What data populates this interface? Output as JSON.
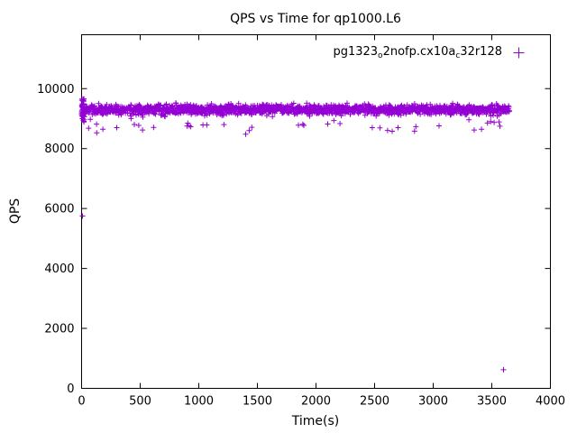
{
  "chart": {
    "title": "QPS vs Time for qp1000.L6",
    "xlabel": "Time(s)",
    "ylabel": "QPS",
    "legend": {
      "label": "pg1323_o2nofp.cx10a_c32r128",
      "marker": "plus"
    }
  },
  "chart_data": {
    "type": "scatter",
    "title": "QPS vs Time for qp1000.L6",
    "xlabel": "Time(s)",
    "ylabel": "QPS",
    "xlim": [
      0,
      4000
    ],
    "ylim": [
      0,
      11800
    ],
    "xticks": [
      0,
      500,
      1000,
      1500,
      2000,
      2500,
      3000,
      3500,
      4000
    ],
    "yticks": [
      0,
      2000,
      4000,
      6000,
      8000,
      10000
    ],
    "grid": false,
    "legend_position": "top-right-inside",
    "series": [
      {
        "name": "pg1323_o2nofp.cx10a_c32r128",
        "color": "#9400D3",
        "marker": "plus",
        "band": {
          "x_start": 2,
          "x_end": 3650,
          "n": 1700,
          "y_mean": 9300,
          "y_sd": 80,
          "dip_prob": 0.015,
          "dip_min": 200,
          "dip_max": 700,
          "seed": 1323
        },
        "start_cluster": {
          "n": 40,
          "x_min": 0,
          "x_max": 25,
          "y_min": 8850,
          "y_max": 9700
        },
        "outliers": [
          [
            8,
            5750
          ],
          [
            60,
            8680
          ],
          [
            300,
            8700
          ],
          [
            520,
            8620
          ],
          [
            900,
            8750
          ],
          [
            1400,
            8480
          ],
          [
            1430,
            8600
          ],
          [
            1850,
            8780
          ],
          [
            2100,
            8820
          ],
          [
            2480,
            8700
          ],
          [
            2650,
            8580
          ],
          [
            2700,
            8700
          ],
          [
            3050,
            8760
          ],
          [
            3350,
            8620
          ],
          [
            3490,
            8900
          ],
          [
            3520,
            8870
          ],
          [
            3600,
            620
          ]
        ]
      }
    ]
  }
}
